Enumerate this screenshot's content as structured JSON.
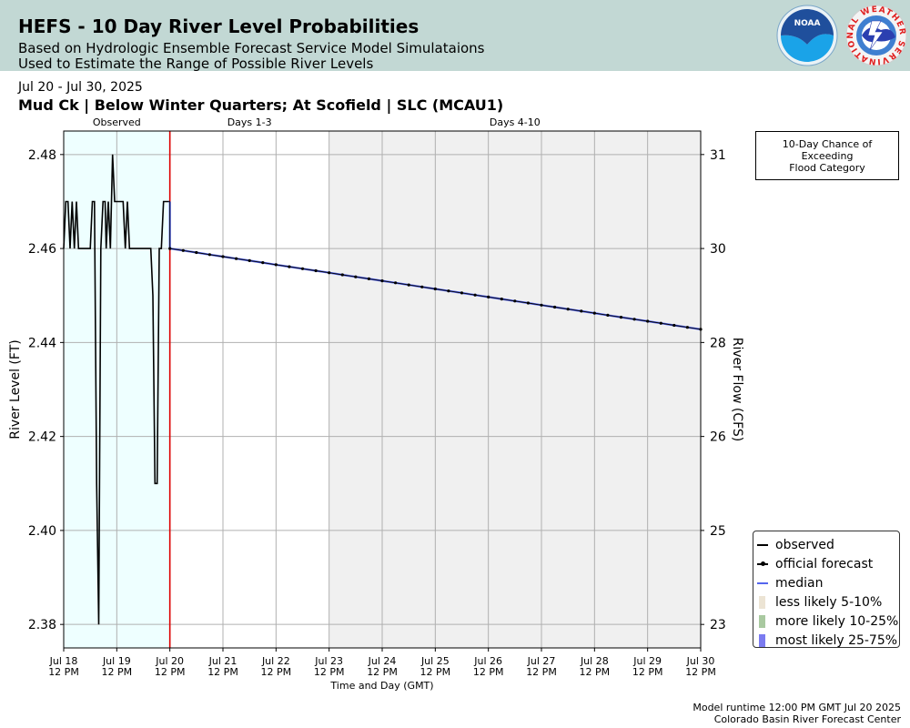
{
  "header": {
    "title": "HEFS - 10 Day River Level Probabilities",
    "subtitle_line1": "Based on Hydrologic Ensemble Forecast Service Model Simulataions",
    "subtitle_line2": "Used to Estimate the Range of Possible River Levels",
    "logo_noaa_icon": "noaa-logo",
    "logo_nws_icon": "nws-logo",
    "nws_ring_text": "NATIONAL WEATHER SERVICE",
    "noaa_text": "NOAA"
  },
  "date_range": "Jul 20 - Jul 30, 2025",
  "location": "Mud Ck | Below Winter Quarters; At Scofield | SLC (MCAU1)",
  "legend_box": {
    "line1": "10-Day Chance of",
    "line2": "Exceeding",
    "line3": "Flood Category"
  },
  "legend": [
    {
      "label": "observed",
      "color": "#000000",
      "kind": "line"
    },
    {
      "label": "official forecast",
      "color": "#000000",
      "kind": "line-dot"
    },
    {
      "label": "median",
      "color": "#5566ee",
      "kind": "line"
    },
    {
      "label": "less likely 5-10%",
      "color": "#ece4d4",
      "kind": "patch"
    },
    {
      "label": "more likely 10-25%",
      "color": "#a9c9a0",
      "kind": "patch"
    },
    {
      "label": "most likely 25-75%",
      "color": "#7b7bf0",
      "kind": "patch"
    }
  ],
  "footer": {
    "line1": "Model runtime 12:00 PM GMT Jul 20 2025",
    "line2": "Colorado Basin River Forecast Center"
  },
  "chart_data": {
    "type": "line",
    "xlabel": "Time and Day (GMT)",
    "ylabel": "River Level (FT)",
    "ylabel_right": "River Flow (CFS)",
    "ylim": [
      2.375,
      2.485
    ],
    "xlim_days": [
      0,
      12
    ],
    "x_ticks": [
      {
        "day": 0,
        "line1": "Jul 18",
        "line2": "12 PM"
      },
      {
        "day": 1,
        "line1": "Jul 19",
        "line2": "12 PM"
      },
      {
        "day": 2,
        "line1": "Jul 20",
        "line2": "12 PM"
      },
      {
        "day": 3,
        "line1": "Jul 21",
        "line2": "12 PM"
      },
      {
        "day": 4,
        "line1": "Jul 22",
        "line2": "12 PM"
      },
      {
        "day": 5,
        "line1": "Jul 23",
        "line2": "12 PM"
      },
      {
        "day": 6,
        "line1": "Jul 24",
        "line2": "12 PM"
      },
      {
        "day": 7,
        "line1": "Jul 25",
        "line2": "12 PM"
      },
      {
        "day": 8,
        "line1": "Jul 26",
        "line2": "12 PM"
      },
      {
        "day": 9,
        "line1": "Jul 27",
        "line2": "12 PM"
      },
      {
        "day": 10,
        "line1": "Jul 28",
        "line2": "12 PM"
      },
      {
        "day": 11,
        "line1": "Jul 29",
        "line2": "12 PM"
      },
      {
        "day": 12,
        "line1": "Jul 30",
        "line2": "12 PM"
      }
    ],
    "y_ticks_left": [
      2.38,
      2.4,
      2.42,
      2.44,
      2.46,
      2.48
    ],
    "y_ticks_left_labels": [
      "2.38",
      "2.40",
      "2.42",
      "2.44",
      "2.46",
      "2.48"
    ],
    "y_ticks_right": [
      {
        "level": 2.38,
        "label": "23"
      },
      {
        "level": 2.4,
        "label": "25"
      },
      {
        "level": 2.42,
        "label": "26"
      },
      {
        "level": 2.44,
        "label": "28"
      },
      {
        "level": 2.46,
        "label": "30"
      },
      {
        "level": 2.48,
        "label": "31"
      }
    ],
    "regions": [
      {
        "label": "Observed",
        "start": 0,
        "end": 2,
        "color": "#eeffff"
      },
      {
        "label": "Days 1-3",
        "start": 2,
        "end": 5,
        "color": "#ffffff"
      },
      {
        "label": "Days 4-10",
        "start": 5,
        "end": 12,
        "color": "#f0f0f0"
      }
    ],
    "now_line_day": 2,
    "now_line_color": "#dd0000",
    "observed": {
      "x": [
        0,
        0.04,
        0.08,
        0.12,
        0.16,
        0.2,
        0.24,
        0.28,
        0.32,
        0.5,
        0.54,
        0.58,
        0.62,
        0.66,
        0.7,
        0.74,
        0.78,
        0.8,
        0.84,
        0.88,
        0.92,
        0.96,
        1.0,
        1.04,
        1.08,
        1.12,
        1.16,
        1.2,
        1.24,
        1.28,
        1.32,
        1.6,
        1.64,
        1.68,
        1.72,
        1.76,
        1.8,
        1.84,
        1.88,
        1.92,
        1.96,
        2.0
      ],
      "y": [
        2.46,
        2.47,
        2.47,
        2.46,
        2.47,
        2.46,
        2.47,
        2.46,
        2.46,
        2.46,
        2.47,
        2.47,
        2.41,
        2.38,
        2.46,
        2.47,
        2.47,
        2.46,
        2.47,
        2.46,
        2.48,
        2.47,
        2.47,
        2.47,
        2.47,
        2.47,
        2.46,
        2.47,
        2.46,
        2.46,
        2.46,
        2.46,
        2.46,
        2.45,
        2.41,
        2.41,
        2.46,
        2.46,
        2.47,
        2.47,
        2.47,
        2.47
      ]
    },
    "forecast_start": {
      "day": 2.0,
      "level": 2.46
    },
    "forecast_end": {
      "day": 12.0,
      "level": 2.4428
    },
    "forecast_step_days": 0.25,
    "series": [
      {
        "name": "official forecast",
        "color": "#000000"
      },
      {
        "name": "median",
        "color": "#5566ee"
      }
    ]
  }
}
